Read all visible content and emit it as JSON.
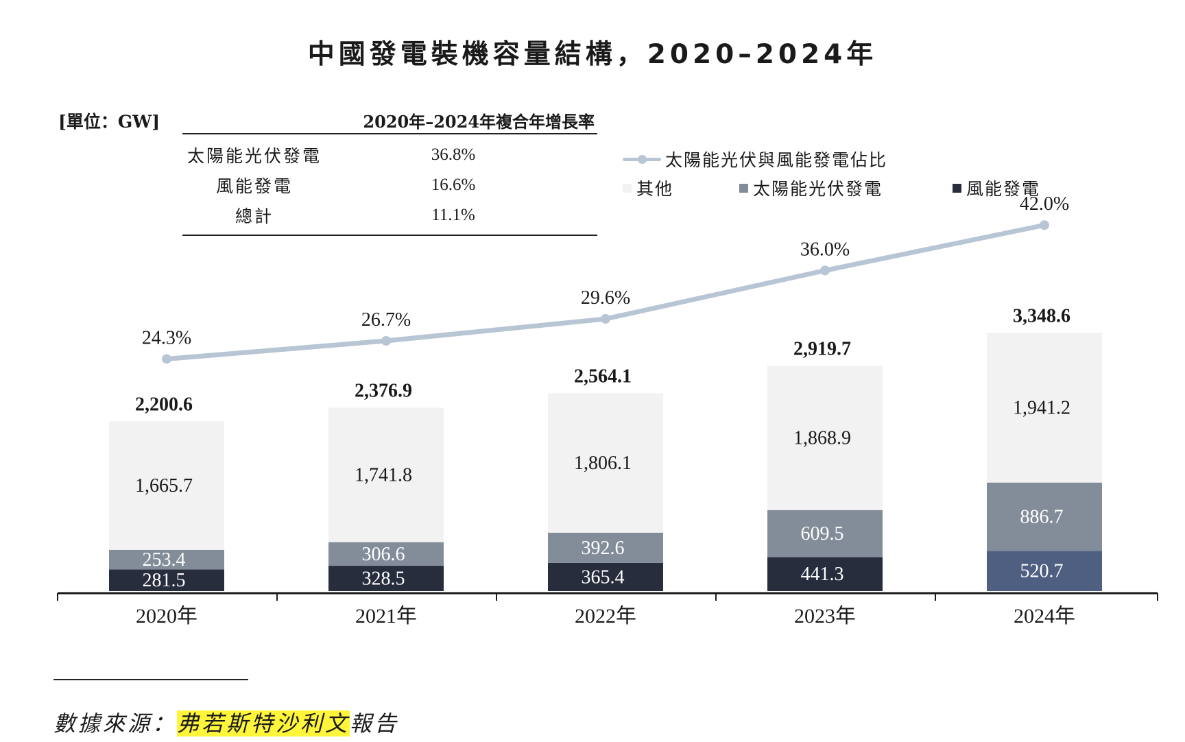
{
  "title": "中國發電裝機容量結構，2020–2024年",
  "unit": "[單位：GW]",
  "cagr_table": {
    "header": "2020年–2024年複合年增長率",
    "rows": [
      {
        "label": "太陽能光伏發電",
        "value": "36.8%"
      },
      {
        "label": "風能發電",
        "value": "16.6%"
      },
      {
        "label": "總計",
        "value": "11.1%"
      }
    ]
  },
  "legend": {
    "line": "太陽能光伏與風能發電佔比",
    "items": [
      {
        "label": "其他",
        "color": "#f2f2f2"
      },
      {
        "label": "太陽能光伏發電",
        "color": "#838d99"
      },
      {
        "label": "風能發電",
        "color": "#272d3d"
      }
    ]
  },
  "source": {
    "prefix": "數據來源：",
    "highlight": "弗若斯特沙利文",
    "suffix": "報告"
  },
  "chart_data": {
    "type": "bar",
    "stacked": true,
    "categories": [
      "2020年",
      "2021年",
      "2022年",
      "2023年",
      "2024年"
    ],
    "series": [
      {
        "name": "風能發電",
        "values": [
          281.5,
          328.5,
          365.4,
          441.3,
          520.7
        ],
        "labels": [
          "281.5",
          "328.5",
          "365.4",
          "441.3",
          "520.7"
        ],
        "color": "#272d3d"
      },
      {
        "name": "太陽能光伏發電",
        "values": [
          253.4,
          306.6,
          392.6,
          609.5,
          886.7
        ],
        "labels": [
          "253.4",
          "306.6",
          "392.6",
          "609.5",
          "886.7"
        ],
        "color": "#838d99"
      },
      {
        "name": "其他",
        "values": [
          1665.7,
          1741.8,
          1806.1,
          1868.9,
          1941.2
        ],
        "labels": [
          "1,665.7",
          "1,741.8",
          "1,806.1",
          "1,868.9",
          "1,941.2"
        ],
        "color": "#f2f2f2"
      }
    ],
    "totals": [
      2200.6,
      2376.9,
      2564.1,
      2919.7,
      3348.6
    ],
    "total_labels": [
      "2,200.6",
      "2,376.9",
      "2,564.1",
      "2,919.7",
      "3,348.6"
    ],
    "line_series": {
      "name": "太陽能光伏與風能發電佔比",
      "values": [
        24.3,
        26.7,
        29.6,
        36.0,
        42.0
      ],
      "labels": [
        "24.3%",
        "26.7%",
        "29.6%",
        "36.0%",
        "42.0%"
      ],
      "color": "#b8c5d4"
    },
    "last_wind_color": "#4f5f81"
  }
}
